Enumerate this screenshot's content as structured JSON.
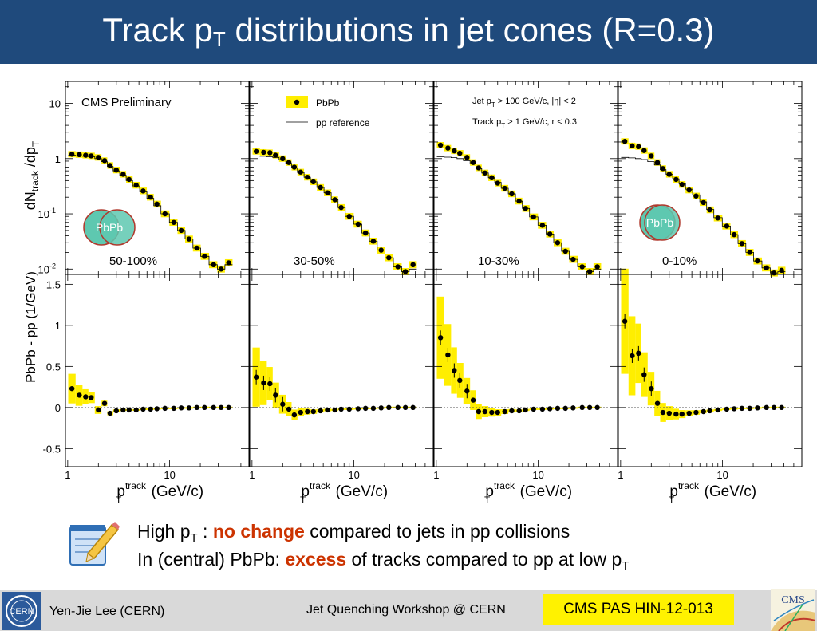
{
  "slide": {
    "title_main": "Track p",
    "title_sub": "T",
    "title_rest": " distributions in jet cones (R=0.3)"
  },
  "bullets": {
    "line1": {
      "a": "High p",
      "sub": "T",
      "b": " : ",
      "hl": "no change",
      "c": " compared to jets in pp collisions"
    },
    "line2": {
      "a": "In (central) PbPb: ",
      "hl": "excess",
      "b": " of tracks compared to pp at low p",
      "sub": "T"
    }
  },
  "footer": {
    "presenter": "Yen-Jie Lee (CERN)",
    "workshop": "Jet Quenching Workshop @ CERN",
    "reference": "CMS PAS HIN-12-013"
  },
  "logos": {
    "cern": "CERN",
    "cms": "CMS"
  },
  "icons": {
    "note": "notepad-pencil-icon",
    "cern": "cern-logo-icon",
    "cms": "cms-logo-icon"
  },
  "colors": {
    "title_bar": "#1f4a7c",
    "highlight": "#cc3300",
    "band": "#ffee00",
    "badge": "#fff200",
    "footer": "#d9d9d9"
  },
  "chart_data": [
    {
      "type": "scatter",
      "title": "",
      "top_text": {
        "cms": "CMS Preliminary",
        "legend_pbpb": "PbPb",
        "legend_pp": "pp reference",
        "cut1": "Jet p",
        "cut1_sub": "T",
        "cut1_rest": " > 100 GeV/c, |η| < 2",
        "cut2": "Track p",
        "cut2_sub": "T",
        "cut2_rest": " > 1 GeV/c, r < 0.3"
      },
      "ylabel_top": {
        "a": "dN",
        "sub1": "track",
        "b": " /dp",
        "sub2": "T"
      },
      "ylabel_bottom": "PbPb - pp   (1/GeV)",
      "xlabel": {
        "a": "p",
        "sup": "track",
        "sub": "T",
        "b": " (GeV/c)"
      },
      "y_scale": "log",
      "ylim": [
        0.008,
        25
      ],
      "y_ticks": [
        {
          "v": 10,
          "label": "10"
        },
        {
          "v": 1,
          "label": "1"
        },
        {
          "v": 0.1,
          "label": "10",
          "exp": "-1"
        },
        {
          "v": 0.01,
          "label": "10",
          "exp": "-2"
        }
      ],
      "x_scale": "log",
      "xlim": [
        0.95,
        60
      ],
      "x_ticks": [
        {
          "v": 1,
          "label": "1"
        },
        {
          "v": 10,
          "label": "10"
        }
      ],
      "logos": {
        "pbpb_peripheral": "PbPb",
        "pbpb_central": "PbPb"
      },
      "panels": [
        {
          "label": "50-100%",
          "x": [
            1.1,
            1.3,
            1.5,
            1.7,
            2.0,
            2.3,
            2.6,
            3.0,
            3.5,
            4.0,
            4.7,
            5.5,
            6.5,
            7.5,
            9,
            11,
            13,
            15.5,
            18.5,
            22,
            27,
            32,
            38
          ],
          "pp": [
            1.15,
            1.12,
            1.1,
            1.08,
            1.0,
            0.88,
            0.72,
            0.6,
            0.5,
            0.4,
            0.32,
            0.25,
            0.19,
            0.14,
            0.1,
            0.07,
            0.05,
            0.035,
            0.024,
            0.017,
            0.012,
            0.01,
            0.012
          ],
          "pbpb": [
            1.2,
            1.18,
            1.15,
            1.12,
            1.05,
            0.92,
            0.75,
            0.62,
            0.52,
            0.42,
            0.33,
            0.26,
            0.2,
            0.15,
            0.1,
            0.07,
            0.05,
            0.035,
            0.024,
            0.017,
            0.012,
            0.01,
            0.013
          ],
          "diff": [
            0.23,
            0.15,
            0.13,
            0.12,
            -0.03,
            0.05,
            -0.07,
            -0.04,
            -0.03,
            -0.03,
            -0.03,
            -0.02,
            -0.02,
            -0.015,
            -0.01,
            -0.01,
            -0.005,
            -0.005,
            0,
            0,
            0,
            0,
            0
          ]
        },
        {
          "label": "30-50%",
          "x": [
            1.1,
            1.3,
            1.5,
            1.7,
            2.0,
            2.3,
            2.6,
            3.0,
            3.5,
            4.0,
            4.7,
            5.5,
            6.5,
            7.5,
            9,
            11,
            13,
            15.5,
            18.5,
            22,
            27,
            32,
            38
          ],
          "pp": [
            1.12,
            1.1,
            1.08,
            1.05,
            0.95,
            0.82,
            0.68,
            0.56,
            0.46,
            0.38,
            0.3,
            0.24,
            0.18,
            0.13,
            0.09,
            0.065,
            0.045,
            0.032,
            0.022,
            0.016,
            0.011,
            0.009,
            0.01
          ],
          "pbpb": [
            1.35,
            1.3,
            1.28,
            1.15,
            1.0,
            0.85,
            0.7,
            0.57,
            0.46,
            0.38,
            0.3,
            0.24,
            0.18,
            0.13,
            0.09,
            0.065,
            0.045,
            0.032,
            0.022,
            0.016,
            0.011,
            0.009,
            0.012
          ],
          "diff": [
            0.37,
            0.3,
            0.29,
            0.15,
            0.04,
            -0.02,
            -0.09,
            -0.06,
            -0.05,
            -0.05,
            -0.04,
            -0.03,
            -0.03,
            -0.02,
            -0.02,
            -0.015,
            -0.01,
            -0.01,
            -0.005,
            0,
            0,
            0,
            0
          ]
        },
        {
          "label": "10-30%",
          "x": [
            1.1,
            1.3,
            1.5,
            1.7,
            2.0,
            2.3,
            2.6,
            3.0,
            3.5,
            4.0,
            4.7,
            5.5,
            6.5,
            7.5,
            9,
            11,
            13,
            15.5,
            18.5,
            22,
            27,
            32,
            38
          ],
          "pp": [
            1.08,
            1.06,
            1.04,
            1.0,
            0.92,
            0.8,
            0.66,
            0.55,
            0.45,
            0.37,
            0.29,
            0.23,
            0.17,
            0.125,
            0.088,
            0.062,
            0.043,
            0.03,
            0.021,
            0.015,
            0.011,
            0.009,
            0.01
          ],
          "pbpb": [
            1.75,
            1.55,
            1.38,
            1.25,
            1.05,
            0.85,
            0.68,
            0.55,
            0.45,
            0.36,
            0.29,
            0.23,
            0.17,
            0.125,
            0.088,
            0.062,
            0.043,
            0.03,
            0.021,
            0.015,
            0.011,
            0.009,
            0.011
          ],
          "diff": [
            0.85,
            0.64,
            0.45,
            0.33,
            0.2,
            0.09,
            -0.05,
            -0.05,
            -0.06,
            -0.06,
            -0.05,
            -0.04,
            -0.04,
            -0.03,
            -0.02,
            -0.02,
            -0.015,
            -0.01,
            -0.01,
            -0.005,
            0,
            0,
            0
          ]
        },
        {
          "label": "0-10%",
          "x": [
            1.1,
            1.3,
            1.5,
            1.7,
            2.0,
            2.3,
            2.6,
            3.0,
            3.5,
            4.0,
            4.7,
            5.5,
            6.5,
            7.5,
            9,
            11,
            13,
            15.5,
            18.5,
            22,
            27,
            32,
            38
          ],
          "pp": [
            1.05,
            1.03,
            1.0,
            0.96,
            0.88,
            0.77,
            0.63,
            0.52,
            0.43,
            0.35,
            0.28,
            0.22,
            0.165,
            0.12,
            0.085,
            0.06,
            0.042,
            0.029,
            0.02,
            0.014,
            0.0105,
            0.0085,
            0.009
          ],
          "pbpb": [
            2.05,
            1.7,
            1.65,
            1.4,
            1.12,
            0.85,
            0.66,
            0.52,
            0.42,
            0.34,
            0.27,
            0.21,
            0.16,
            0.118,
            0.084,
            0.06,
            0.042,
            0.029,
            0.02,
            0.014,
            0.0105,
            0.0085,
            0.0095
          ],
          "diff": [
            1.05,
            0.63,
            0.66,
            0.4,
            0.23,
            0.05,
            -0.06,
            -0.07,
            -0.08,
            -0.08,
            -0.07,
            -0.06,
            -0.05,
            -0.04,
            -0.03,
            -0.02,
            -0.015,
            -0.01,
            -0.01,
            -0.005,
            0,
            0,
            0
          ]
        }
      ],
      "ratio_y_scale": "linear",
      "ratio_ylim": [
        -0.72,
        1.62
      ],
      "ratio_y_ticks": [
        "1.5",
        "1",
        "0.5",
        "0",
        "-0.5"
      ],
      "ratio_y_tick_values": [
        1.5,
        1,
        0.5,
        0,
        -0.5
      ]
    }
  ]
}
